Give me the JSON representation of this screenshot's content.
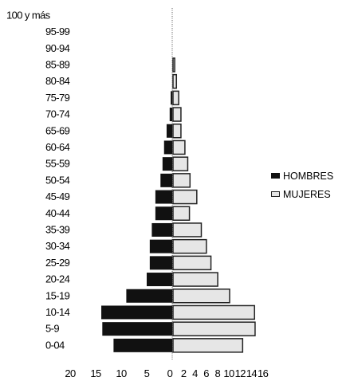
{
  "chart_data": {
    "type": "bar",
    "orientation": "horizontal-population-pyramid",
    "categories": [
      "100 y más",
      "95-99",
      "90-94",
      "85-89",
      "80-84",
      "75-79",
      "70-74",
      "65-69",
      "60-64",
      "55-59",
      "50-54",
      "45-49",
      "40-44",
      "35-39",
      "30-34",
      "25-29",
      "20-24",
      "15-19",
      "10-14",
      "5-9",
      "0-04"
    ],
    "series": [
      {
        "name": "HOMBRES",
        "side": "left",
        "color": "#111111",
        "values": [
          0,
          0,
          0,
          0,
          0,
          0.3,
          0.5,
          1.1,
          1.6,
          1.9,
          2.3,
          3.3,
          3.3,
          4.0,
          4.4,
          4.4,
          5.0,
          9.0,
          13.9,
          13.7,
          11.5
        ]
      },
      {
        "name": "MUJERES",
        "side": "right",
        "color": "#e6e6e6",
        "values": [
          0,
          0,
          0,
          0.3,
          0.6,
          1.0,
          1.4,
          1.4,
          2.1,
          2.6,
          3.0,
          4.2,
          2.9,
          5.0,
          5.9,
          6.7,
          7.9,
          10.0,
          14.4,
          14.5,
          12.3
        ]
      }
    ],
    "x_left_ticks": [
      "20",
      "15",
      "10",
      "5",
      "0"
    ],
    "x_right_ticks": [
      "2",
      "4",
      "6",
      "8",
      "10",
      "12",
      "14",
      "16"
    ],
    "xlim_left": [
      0,
      20
    ],
    "xlim_right": [
      0,
      16
    ],
    "legend_position": "right",
    "grid": false
  },
  "legend": {
    "male_label": "HOMBRES",
    "female_label": "MUJERES"
  }
}
